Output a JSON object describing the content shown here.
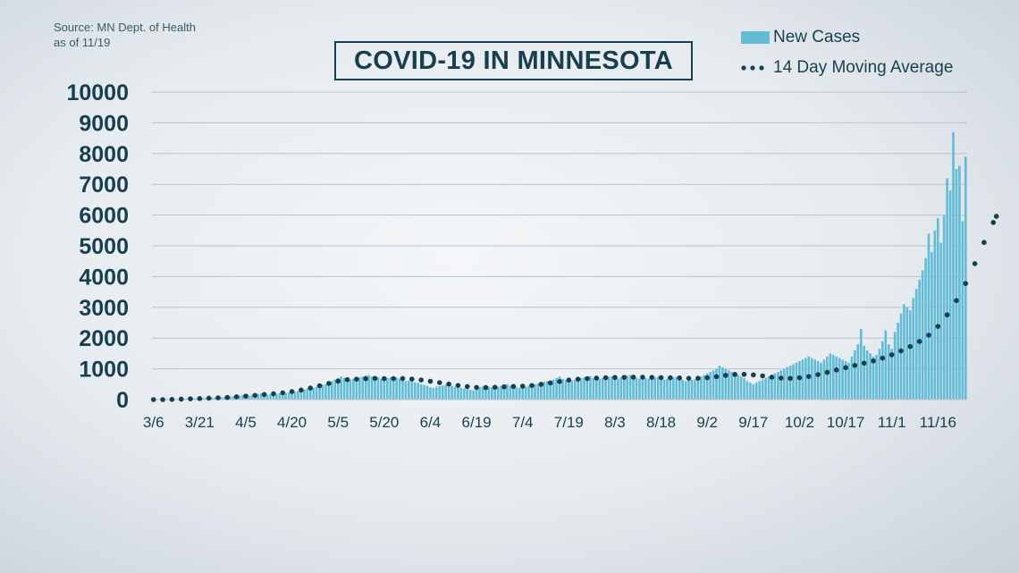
{
  "source": {
    "line1": "Source: MN Dept. of Health",
    "line2": "as of 11/19"
  },
  "title": "COVID-19 IN MINNESOTA",
  "colors": {
    "bar": "#63bcd6",
    "dot": "#173f4f",
    "text": "#173f4f",
    "grid": "#b8c4cc"
  },
  "legend": [
    {
      "label": "New Cases",
      "marker": "bar"
    },
    {
      "label": "14 Day Moving Average",
      "marker": "dots"
    }
  ],
  "chart_data": {
    "type": "bar",
    "title": "COVID-19 IN MINNESOTA",
    "xlabel": "",
    "ylabel": "",
    "ylim": [
      0,
      10000
    ],
    "yticks": [
      0,
      1000,
      2000,
      3000,
      4000,
      5000,
      6000,
      7000,
      8000,
      9000,
      10000
    ],
    "xticks": [
      "3/6",
      "3/21",
      "4/5",
      "4/20",
      "5/5",
      "5/20",
      "6/4",
      "6/19",
      "7/4",
      "7/19",
      "8/3",
      "8/18",
      "9/2",
      "9/17",
      "10/2",
      "10/17",
      "11/1",
      "11/16"
    ],
    "start_date": "3/6",
    "end_date": "11/19",
    "grid": true,
    "legend_position": "top-right",
    "series": [
      {
        "name": "New Cases",
        "type": "bar",
        "values": [
          0,
          0,
          0,
          2,
          3,
          5,
          8,
          10,
          15,
          20,
          25,
          30,
          35,
          40,
          35,
          40,
          45,
          50,
          55,
          60,
          65,
          70,
          75,
          80,
          90,
          100,
          110,
          120,
          130,
          140,
          120,
          130,
          150,
          160,
          180,
          200,
          220,
          160,
          170,
          180,
          190,
          200,
          210,
          220,
          230,
          250,
          260,
          280,
          300,
          320,
          350,
          400,
          380,
          420,
          450,
          480,
          500,
          550,
          600,
          650,
          700,
          750,
          700,
          720,
          650,
          680,
          700,
          720,
          750,
          780,
          800,
          750,
          700,
          720,
          680,
          650,
          700,
          720,
          750,
          720,
          680,
          650,
          600,
          620,
          580,
          560,
          540,
          500,
          480,
          450,
          400,
          380,
          420,
          440,
          460,
          480,
          500,
          450,
          420,
          400,
          380,
          360,
          340,
          320,
          300,
          350,
          400,
          420,
          450,
          420,
          400,
          380,
          420,
          450,
          480,
          500,
          450,
          420,
          400,
          380,
          400,
          420,
          450,
          480,
          500,
          520,
          550,
          580,
          600,
          620,
          650,
          700,
          750,
          680,
          640,
          600,
          620,
          650,
          680,
          700,
          720,
          740,
          760,
          700,
          650,
          680,
          700,
          720,
          740,
          760,
          700,
          680,
          720,
          760,
          780,
          800,
          750,
          700,
          680,
          720,
          700,
          680,
          700,
          720,
          740,
          700,
          650,
          680,
          700,
          720,
          740,
          700,
          650,
          600,
          620,
          640,
          660,
          700,
          750,
          800,
          850,
          900,
          950,
          1000,
          1100,
          1050,
          1000,
          950,
          900,
          850,
          800,
          750,
          700,
          600,
          550,
          500,
          550,
          600,
          650,
          700,
          750,
          800,
          850,
          900,
          950,
          1000,
          1050,
          1100,
          1150,
          1200,
          1250,
          1300,
          1350,
          1400,
          1350,
          1300,
          1250,
          1200,
          1300,
          1400,
          1500,
          1450,
          1400,
          1350,
          1300,
          1250,
          1200,
          1400,
          1600,
          1800,
          2300,
          1750,
          1600,
          1500,
          1400,
          1450,
          1650,
          1900,
          2250,
          1800,
          1650,
          2200,
          2500,
          2800,
          3100,
          3000,
          2900,
          3300,
          3600,
          3900,
          4200,
          4600,
          5400,
          4800,
          5500,
          5900,
          5100,
          6000,
          7200,
          6800,
          8700,
          7500,
          7600,
          5800,
          7900
        ]
      },
      {
        "name": "14 Day Moving Average",
        "type": "dots",
        "values": [
          0,
          0,
          0,
          0,
          0,
          2,
          5,
          8,
          12,
          15,
          18,
          22,
          25,
          28,
          30,
          35,
          38,
          42,
          45,
          50,
          55,
          58,
          62,
          66,
          70,
          75,
          82,
          90,
          98,
          105,
          112,
          120,
          128,
          136,
          145,
          155,
          165,
          172,
          180,
          190,
          200,
          210,
          220,
          232,
          245,
          260,
          275,
          292,
          310,
          330,
          352,
          376,
          400,
          424,
          450,
          476,
          500,
          525,
          550,
          575,
          600,
          625,
          640,
          650,
          655,
          660,
          665,
          670,
          675,
          680,
          685,
          690,
          690,
          688,
          685,
          682,
          680,
          680,
          682,
          684,
          686,
          684,
          680,
          675,
          668,
          660,
          650,
          638,
          625,
          610,
          595,
          580,
          565,
          550,
          535,
          520,
          505,
          490,
          475,
          460,
          448,
          436,
          424,
          412,
          400,
          395,
          392,
          390,
          390,
          392,
          395,
          400,
          405,
          410,
          415,
          420,
          425,
          428,
          430,
          432,
          435,
          440,
          448,
          458,
          470,
          482,
          495,
          510,
          525,
          540,
          556,
          572,
          588,
          604,
          620,
          634,
          646,
          656,
          664,
          670,
          676,
          682,
          688,
          694,
          700,
          704,
          708,
          712,
          716,
          718,
          720,
          720,
          720,
          722,
          724,
          726,
          728,
          730,
          730,
          728,
          726,
          724,
          722,
          720,
          718,
          716,
          714,
          712,
          710,
          708,
          706,
          704,
          700,
          696,
          692,
          690,
          690,
          692,
          696,
          702,
          710,
          720,
          732,
          746,
          760,
          774,
          788,
          800,
          810,
          818,
          822,
          824,
          822,
          818,
          812,
          804,
          794,
          782,
          770,
          756,
          742,
          728,
          716,
          706,
          698,
          692,
          690,
          690,
          694,
          700,
          710,
          722,
          736,
          752,
          770,
          790,
          812,
          836,
          860,
          886,
          912,
          938,
          964,
          990,
          1016,
          1040,
          1064,
          1088,
          1112,
          1136,
          1160,
          1184,
          1208,
          1232,
          1258,
          1286,
          1316,
          1348,
          1382,
          1418,
          1456,
          1496,
          1538,
          1582,
          1628,
          1676,
          1726,
          1778,
          1832,
          1890,
          1952,
          2020,
          2095,
          2180,
          2275,
          2380,
          2495,
          2620,
          2755,
          2900,
          3055,
          3220,
          3395,
          3580,
          3775,
          3980,
          4195,
          4420,
          4650,
          4880,
          5110,
          5340,
          5560,
          5760,
          5960
        ]
      }
    ]
  }
}
